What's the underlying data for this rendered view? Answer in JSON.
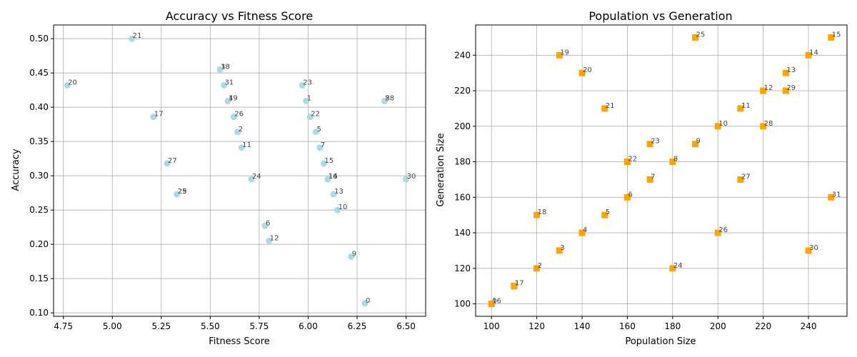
{
  "chart_data": [
    {
      "type": "scatter",
      "title": "Accuracy vs Fitness Score",
      "xlabel": "Fitness Score",
      "ylabel": "Accuracy",
      "xlim": [
        4.7,
        6.6
      ],
      "ylim": [
        0.095,
        0.52
      ],
      "xticks": [
        "4.75",
        "5.00",
        "5.25",
        "5.50",
        "5.75",
        "6.00",
        "6.25",
        "6.50"
      ],
      "yticks": [
        "0.10",
        "0.15",
        "0.20",
        "0.25",
        "0.30",
        "0.35",
        "0.40",
        "0.45",
        "0.50"
      ],
      "grid": true,
      "marker": "circle",
      "color": "#add8e6",
      "points": [
        {
          "label": "0",
          "x": 6.29,
          "y": 0.114
        },
        {
          "label": "1",
          "x": 5.99,
          "y": 0.409
        },
        {
          "label": "2",
          "x": 5.64,
          "y": 0.364
        },
        {
          "label": "3",
          "x": 5.55,
          "y": 0.455
        },
        {
          "label": "4",
          "x": 5.59,
          "y": 0.409
        },
        {
          "label": "5",
          "x": 6.04,
          "y": 0.364
        },
        {
          "label": "6",
          "x": 5.78,
          "y": 0.227
        },
        {
          "label": "7",
          "x": 6.06,
          "y": 0.341
        },
        {
          "label": "8",
          "x": 6.39,
          "y": 0.409
        },
        {
          "label": "9",
          "x": 6.22,
          "y": 0.182
        },
        {
          "label": "10",
          "x": 6.15,
          "y": 0.25
        },
        {
          "label": "11",
          "x": 5.66,
          "y": 0.341
        },
        {
          "label": "12",
          "x": 5.8,
          "y": 0.205
        },
        {
          "label": "13",
          "x": 6.13,
          "y": 0.273
        },
        {
          "label": "14",
          "x": 6.1,
          "y": 0.295
        },
        {
          "label": "15",
          "x": 6.08,
          "y": 0.318
        },
        {
          "label": "16",
          "x": 6.1,
          "y": 0.295
        },
        {
          "label": "17",
          "x": 5.21,
          "y": 0.386
        },
        {
          "label": "18",
          "x": 5.55,
          "y": 0.455
        },
        {
          "label": "19",
          "x": 5.59,
          "y": 0.409
        },
        {
          "label": "20",
          "x": 4.77,
          "y": 0.432
        },
        {
          "label": "21",
          "x": 5.1,
          "y": 0.5
        },
        {
          "label": "22",
          "x": 6.01,
          "y": 0.386
        },
        {
          "label": "23",
          "x": 5.97,
          "y": 0.432
        },
        {
          "label": "24",
          "x": 5.71,
          "y": 0.295
        },
        {
          "label": "25",
          "x": 5.33,
          "y": 0.273
        },
        {
          "label": "26",
          "x": 5.62,
          "y": 0.386
        },
        {
          "label": "27",
          "x": 5.28,
          "y": 0.318
        },
        {
          "label": "28",
          "x": 6.39,
          "y": 0.409
        },
        {
          "label": "29",
          "x": 5.33,
          "y": 0.273
        },
        {
          "label": "30",
          "x": 6.5,
          "y": 0.295
        },
        {
          "label": "31",
          "x": 5.57,
          "y": 0.432
        }
      ]
    },
    {
      "type": "scatter",
      "title": "Population vs Generation",
      "xlabel": "Population Size",
      "ylabel": "Generation Size",
      "xlim": [
        93,
        257
      ],
      "ylim": [
        93,
        257
      ],
      "xticks": [
        "100",
        "120",
        "140",
        "160",
        "180",
        "200",
        "220",
        "240"
      ],
      "yticks": [
        "100",
        "120",
        "140",
        "160",
        "180",
        "200",
        "220",
        "240"
      ],
      "grid": true,
      "marker": "square",
      "color": "#ffa500",
      "points": [
        {
          "label": "0",
          "x": 100,
          "y": 100
        },
        {
          "label": "1",
          "x": 110,
          "y": 110
        },
        {
          "label": "2",
          "x": 120,
          "y": 120
        },
        {
          "label": "3",
          "x": 130,
          "y": 130
        },
        {
          "label": "4",
          "x": 140,
          "y": 140
        },
        {
          "label": "5",
          "x": 150,
          "y": 150
        },
        {
          "label": "6",
          "x": 160,
          "y": 160
        },
        {
          "label": "7",
          "x": 170,
          "y": 170
        },
        {
          "label": "8",
          "x": 180,
          "y": 180
        },
        {
          "label": "9",
          "x": 190,
          "y": 190
        },
        {
          "label": "10",
          "x": 200,
          "y": 200
        },
        {
          "label": "11",
          "x": 210,
          "y": 210
        },
        {
          "label": "12",
          "x": 220,
          "y": 220
        },
        {
          "label": "13",
          "x": 230,
          "y": 230
        },
        {
          "label": "14",
          "x": 240,
          "y": 240
        },
        {
          "label": "15",
          "x": 250,
          "y": 250
        },
        {
          "label": "16",
          "x": 100,
          "y": 100
        },
        {
          "label": "17",
          "x": 110,
          "y": 110
        },
        {
          "label": "18",
          "x": 120,
          "y": 150
        },
        {
          "label": "19",
          "x": 130,
          "y": 240
        },
        {
          "label": "20",
          "x": 140,
          "y": 230
        },
        {
          "label": "21",
          "x": 150,
          "y": 210
        },
        {
          "label": "22",
          "x": 160,
          "y": 180
        },
        {
          "label": "23",
          "x": 170,
          "y": 190
        },
        {
          "label": "24",
          "x": 180,
          "y": 120
        },
        {
          "label": "25",
          "x": 190,
          "y": 250
        },
        {
          "label": "26",
          "x": 200,
          "y": 140
        },
        {
          "label": "27",
          "x": 210,
          "y": 170
        },
        {
          "label": "28",
          "x": 220,
          "y": 200
        },
        {
          "label": "29",
          "x": 230,
          "y": 220
        },
        {
          "label": "30",
          "x": 240,
          "y": 130
        },
        {
          "label": "31",
          "x": 250,
          "y": 160
        }
      ]
    }
  ]
}
